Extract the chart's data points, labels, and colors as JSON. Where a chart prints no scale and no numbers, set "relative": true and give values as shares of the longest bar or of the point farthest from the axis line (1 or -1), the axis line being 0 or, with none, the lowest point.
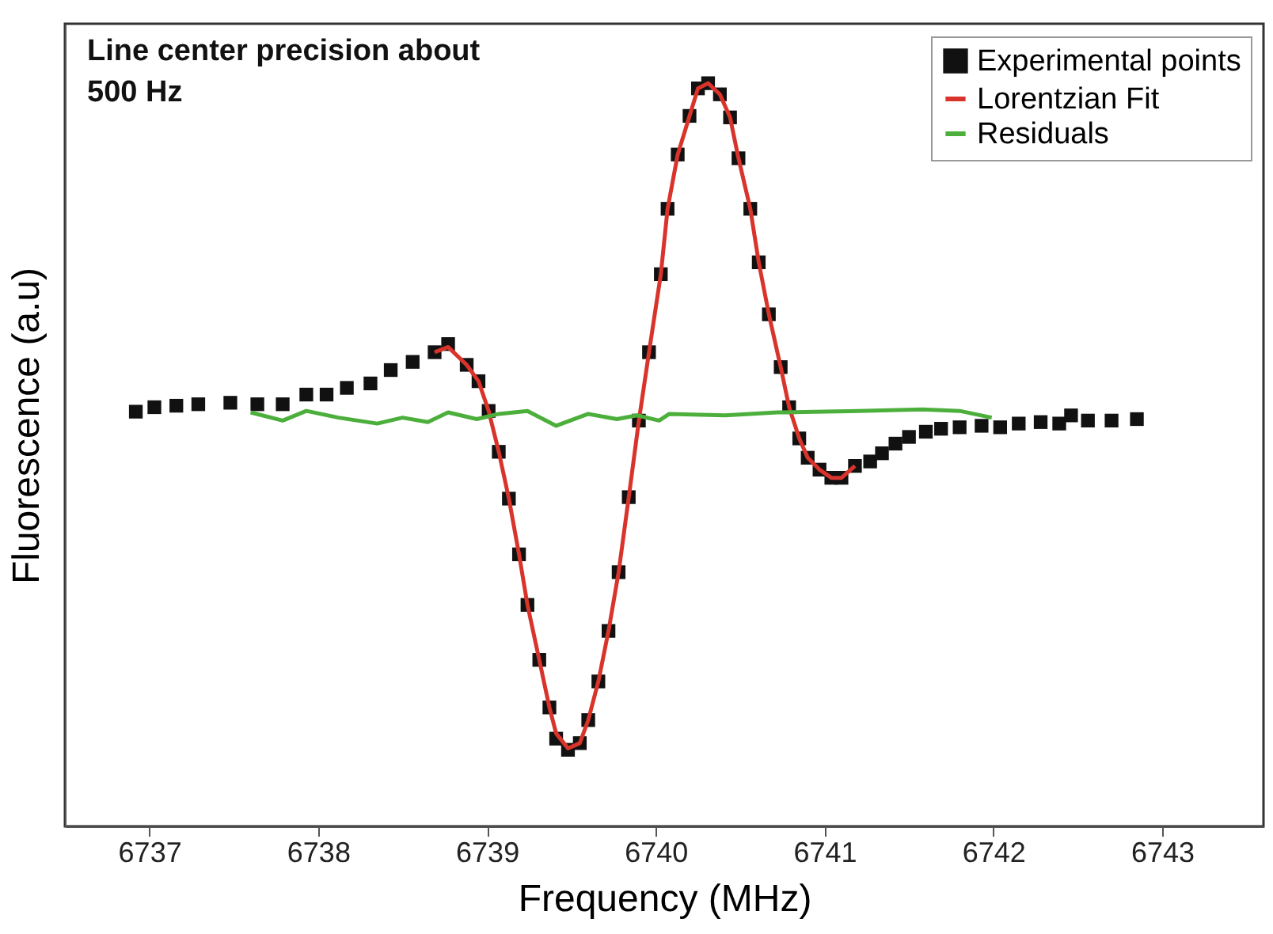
{
  "chart_data": {
    "type": "line",
    "relative": true,
    "xlabel": "Frequency (MHz)",
    "ylabel": "Fluorescence (a.u)",
    "xlim": [
      6736.5,
      6743.6
    ],
    "xticks": [
      6737,
      6738,
      6739,
      6740,
      6741,
      6742,
      6743
    ],
    "legend": "top right",
    "grid": false,
    "annotations": [
      "Line center precision about\n500 Hz"
    ],
    "series": [
      {
        "name": "Experimental points",
        "type": "scatter",
        "marker": "square",
        "color": "#111111",
        "x": [
          6736.92,
          6737.03,
          6737.16,
          6737.29,
          6737.48,
          6737.64,
          6737.79,
          6737.93,
          6738.05,
          6738.17,
          6738.31,
          6738.43,
          6738.56,
          6738.69,
          6738.77,
          6738.88,
          6738.95,
          6739.01,
          6739.07,
          6739.13,
          6739.19,
          6739.24,
          6739.31,
          6739.37,
          6739.41,
          6739.48,
          6739.55,
          6739.6,
          6739.66,
          6739.72,
          6739.78,
          6739.84,
          6739.9,
          6739.96,
          6740.03,
          6740.07,
          6740.13,
          6740.2,
          6740.25,
          6740.31,
          6740.38,
          6740.44,
          6740.49,
          6740.56,
          6740.61,
          6740.67,
          6740.74,
          6740.79,
          6740.85,
          6740.9,
          6740.97,
          6741.04,
          6741.1,
          6741.18,
          6741.27,
          6741.34,
          6741.42,
          6741.5,
          6741.6,
          6741.69,
          6741.8,
          6741.93,
          6742.04,
          6742.15,
          6742.28,
          6742.39,
          6742.46,
          6742.56,
          6742.7,
          6742.85
        ],
        "values": [
          0.558,
          0.564,
          0.566,
          0.568,
          0.57,
          0.568,
          0.568,
          0.581,
          0.581,
          0.59,
          0.596,
          0.614,
          0.625,
          0.638,
          0.649,
          0.621,
          0.599,
          0.559,
          0.504,
          0.441,
          0.366,
          0.298,
          0.224,
          0.16,
          0.118,
          0.103,
          0.112,
          0.143,
          0.195,
          0.263,
          0.342,
          0.443,
          0.546,
          0.638,
          0.743,
          0.831,
          0.904,
          0.956,
          0.993,
          1.0,
          0.985,
          0.954,
          0.899,
          0.831,
          0.759,
          0.689,
          0.618,
          0.564,
          0.522,
          0.496,
          0.48,
          0.469,
          0.469,
          0.485,
          0.491,
          0.502,
          0.515,
          0.524,
          0.531,
          0.535,
          0.537,
          0.539,
          0.537,
          0.542,
          0.544,
          0.542,
          0.553,
          0.546,
          0.546,
          0.548
        ]
      },
      {
        "name": "Lorentzian Fit",
        "color": "#d9342b",
        "x": [
          6738.69,
          6738.77,
          6738.88,
          6738.95,
          6739.01,
          6739.07,
          6739.13,
          6739.19,
          6739.24,
          6739.31,
          6739.37,
          6739.41,
          6739.48,
          6739.55,
          6739.6,
          6739.66,
          6739.72,
          6739.78,
          6739.84,
          6739.9,
          6739.96,
          6740.03,
          6740.07,
          6740.13,
          6740.2,
          6740.25,
          6740.31,
          6740.38,
          6740.44,
          6740.49,
          6740.56,
          6740.61,
          6740.67,
          6740.74,
          6740.79,
          6740.85,
          6740.9,
          6740.97,
          6741.04,
          6741.1,
          6741.18
        ],
        "values": [
          0.638,
          0.645,
          0.621,
          0.599,
          0.559,
          0.504,
          0.441,
          0.366,
          0.298,
          0.224,
          0.16,
          0.125,
          0.105,
          0.112,
          0.143,
          0.195,
          0.263,
          0.342,
          0.443,
          0.546,
          0.638,
          0.743,
          0.831,
          0.904,
          0.956,
          0.993,
          1.0,
          0.985,
          0.954,
          0.899,
          0.831,
          0.759,
          0.689,
          0.618,
          0.564,
          0.522,
          0.496,
          0.48,
          0.469,
          0.469,
          0.485
        ]
      },
      {
        "name": "Residuals",
        "color": "#4caf3c",
        "x": [
          6737.6,
          6737.79,
          6737.93,
          6738.12,
          6738.35,
          6738.5,
          6738.65,
          6738.77,
          6738.94,
          6739.07,
          6739.24,
          6739.41,
          6739.6,
          6739.77,
          6739.89,
          6740.02,
          6740.08,
          6740.41,
          6740.72,
          6741.2,
          6741.58,
          6741.8,
          6741.99
        ],
        "values": [
          0.557,
          0.546,
          0.559,
          0.55,
          0.542,
          0.55,
          0.544,
          0.557,
          0.548,
          0.555,
          0.559,
          0.539,
          0.555,
          0.548,
          0.553,
          0.546,
          0.555,
          0.553,
          0.557,
          0.559,
          0.561,
          0.559,
          0.55
        ]
      }
    ]
  }
}
